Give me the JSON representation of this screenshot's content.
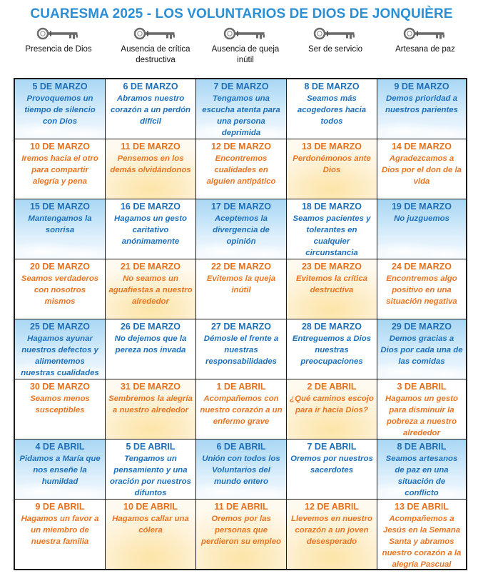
{
  "title": "CUARESMA 2025 - LOS VOLUNTARIOS DE DIOS DE JONQUIÈRE",
  "headers": [
    {
      "label": "Presencia de Dios",
      "icon": "key-icon"
    },
    {
      "label": "Ausencia de crítica destructiva",
      "icon": "key-icon"
    },
    {
      "label": "Ausencia de queja inútil",
      "icon": "key-icon"
    },
    {
      "label": "Ser de servicio",
      "icon": "key-icon"
    },
    {
      "label": "Artesana de paz",
      "icon": "key-icon"
    }
  ],
  "colors": {
    "blue_text": "#1b70bf",
    "orange_text": "#ea7420",
    "title": "#2b8fd6"
  },
  "rows": [
    [
      {
        "date": "5 DE MARZO",
        "text": "Provoquemos un tiempo de silencio con Dios",
        "color": "blue",
        "bg": "sky-cloud"
      },
      {
        "date": "6 DE MARZO",
        "text": "Abramos nuestro corazón a un perdón difícil",
        "color": "blue",
        "bg": "plain-b"
      },
      {
        "date": "7 DE MARZO",
        "text": "Tengamos una escucha atenta para una persona deprimida",
        "color": "blue",
        "bg": "sky-cloud"
      },
      {
        "date": "8 DE MARZO",
        "text": "Seamos más acogedores hacia todos",
        "color": "blue",
        "bg": "plain-b"
      },
      {
        "date": "9 DE MARZO",
        "text": "Demos prioridad a nuestros parientes",
        "color": "blue",
        "bg": "sky-cloud"
      }
    ],
    [
      {
        "date": "10 DE MARZO",
        "text": "Iremos hacia el otro para compartir alegría y pena",
        "color": "orange",
        "bg": "plain-o"
      },
      {
        "date": "11 DE MARZO",
        "text": "Pensemos en los demás olvidándonos",
        "color": "orange",
        "bg": "sun"
      },
      {
        "date": "12 DE MARZO",
        "text": "Encontremos cualidades en alguien antipático",
        "color": "orange",
        "bg": "plain-o"
      },
      {
        "date": "13 DE MARZO",
        "text": "Perdonémonos ante Dios",
        "color": "orange",
        "bg": "sun"
      },
      {
        "date": "14 DE MARZO",
        "text": "Agradezcamos a Dios por el don de la vida",
        "color": "orange",
        "bg": "plain-o"
      }
    ],
    [
      {
        "date": "15 DE MARZO",
        "text": "Mantengamos la sonrisa",
        "color": "blue",
        "bg": "sky-cloud"
      },
      {
        "date": "16 DE MARZO",
        "text": "Hagamos un gesto caritativo anónimamente",
        "color": "blue",
        "bg": "plain-b"
      },
      {
        "date": "17 DE MARZO",
        "text": "Aceptemos la divergencia de opinión",
        "color": "blue",
        "bg": "sky-cloud"
      },
      {
        "date": "18 DE MARZO",
        "text": "Seamos pacientes y tolerantes en cualquier circunstancia",
        "color": "blue",
        "bg": "plain-b"
      },
      {
        "date": "19 DE MARZO",
        "text": "No juzguemos",
        "color": "blue",
        "bg": "sky-cloud"
      }
    ],
    [
      {
        "date": "20 DE MARZO",
        "text": "Seamos verdaderos con nosotros mismos",
        "color": "orange",
        "bg": "plain-o"
      },
      {
        "date": "21 DE MARZO",
        "text": "No seamos un aguafiestas a nuestro alrededor",
        "color": "orange",
        "bg": "sun"
      },
      {
        "date": "22 DE MARZO",
        "text": "Evitemos la queja inútil",
        "color": "orange",
        "bg": "plain-o"
      },
      {
        "date": "23 DE MARZO",
        "text": "Evitemos la crítica destructiva",
        "color": "orange",
        "bg": "sun"
      },
      {
        "date": "24 DE MARZO",
        "text": "Encontremos algo positivo en una situación negativa",
        "color": "orange",
        "bg": "plain-o"
      }
    ],
    [
      {
        "date": "25 DE MARZO",
        "text": "Hagamos ayunar nuestros defectos y alimentemos nuestras cualidades",
        "color": "blue",
        "bg": "sky-cloud"
      },
      {
        "date": "26 DE MARZO",
        "text": "No dejemos que la pereza nos invada",
        "color": "blue",
        "bg": "plain-b"
      },
      {
        "date": "27 DE MARZO",
        "text": "Démosle el frente a nuestras responsabilidades",
        "color": "blue",
        "bg": "plain-b"
      },
      {
        "date": "28 DE MARZO",
        "text": "Entreguemos a Dios nuestras preocupaciones",
        "color": "blue",
        "bg": "plain-b"
      },
      {
        "date": "29 DE MARZO",
        "text": "Demos gracias a Dios por cada una de las comidas",
        "color": "blue",
        "bg": "sky-cloud"
      }
    ],
    [
      {
        "date": "30 DE MARZO",
        "text": "Seamos menos susceptibles",
        "color": "orange",
        "bg": "plain-o"
      },
      {
        "date": "31 DE MARZO",
        "text": "Sembremos la alegría a nuestro alrededor",
        "color": "orange",
        "bg": "sun"
      },
      {
        "date": "1 DE ABRIL",
        "text": "Acompañemos con nuestro corazón a un enfermo grave",
        "color": "orange",
        "bg": "plain-o"
      },
      {
        "date": "2 DE ABRIL",
        "text": "¿Qué caminos escojo para ir hacia Dios?",
        "color": "orange",
        "bg": "sun"
      },
      {
        "date": "3 DE ABRIL",
        "text": "Hagamos un gesto para disminuir la pobreza a nuestro alrededor",
        "color": "orange",
        "bg": "plain-o"
      }
    ],
    [
      {
        "date": "4 DE ABRIL",
        "text": "Pidamos a María que nos enseñe la humildad",
        "color": "blue",
        "bg": "sky-cloud"
      },
      {
        "date": "5 DE ABRIL",
        "text": "Tengamos un pensamiento y una oración por nuestros difuntos",
        "color": "blue",
        "bg": "plain-b"
      },
      {
        "date": "6 DE ABRIL",
        "text": "Unión con todos los Voluntarios del mundo entero",
        "color": "blue",
        "bg": "sky-cloud"
      },
      {
        "date": "7 DE ABRIL",
        "text": "Oremos por nuestros sacerdotes",
        "color": "blue",
        "bg": "plain-b"
      },
      {
        "date": "8 DE ABRIL",
        "text": "Seamos artesanos de paz en una situación de conflicto",
        "color": "blue",
        "bg": "sky-cloud"
      }
    ],
    [
      {
        "date": "9 DE ABRIL",
        "text": "Hagamos un favor a un miembro de nuestra familia",
        "color": "orange",
        "bg": "plain-o"
      },
      {
        "date": "10 DE ABRIL",
        "text": "Hagamos callar una cólera",
        "color": "orange",
        "bg": "sun"
      },
      {
        "date": "11 DE ABRIL",
        "text": "Oremos por las personas que perdieron su empleo",
        "color": "orange",
        "bg": "sun"
      },
      {
        "date": "12 DE ABRIL",
        "text": "Llevemos en nuestro corazón a un joven desesperado",
        "color": "orange",
        "bg": "sun"
      },
      {
        "date": "13 DE ABRIL",
        "text": "Acompañemos a Jesús en la Semana Santa y abramos nuestro corazón a la alegría Pascual",
        "color": "orange",
        "bg": "plain-o"
      }
    ]
  ]
}
